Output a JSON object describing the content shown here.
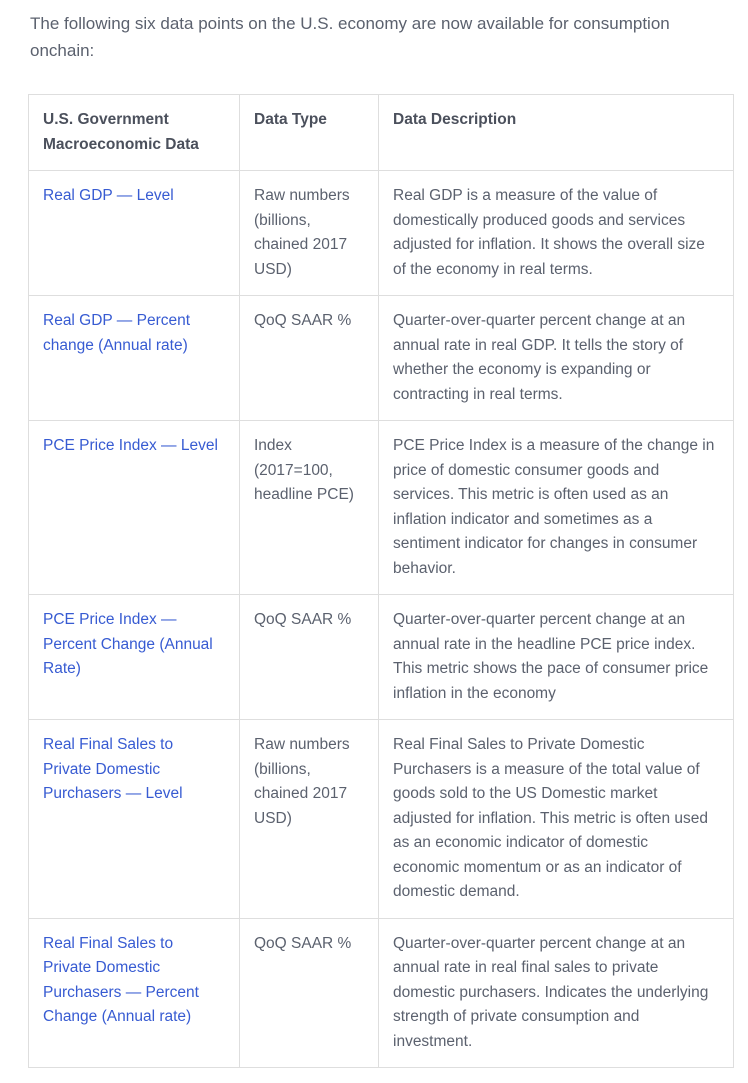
{
  "intro": "The following six data points on the U.S. economy are now available for consumption onchain:",
  "colors": {
    "link_blue": "#375bd2",
    "body_text": "#5b616e",
    "header_text": "#4b505c",
    "table_border": "#dedede"
  },
  "table": {
    "headers": [
      "U.S. Government Macroeconomic Data",
      "Data Type",
      "Data Description"
    ],
    "rows": [
      {
        "name": "Real GDP — Level",
        "type": "Raw numbers (billions, chained 2017 USD)",
        "description": "Real GDP is a measure of the value of domestically produced goods and services adjusted for inflation. It shows the overall size of the economy in real terms."
      },
      {
        "name": "Real GDP — Percent change (Annual rate)",
        "type": "QoQ SAAR %",
        "description": "Quarter-over-quarter percent change at an annual rate in real GDP. It tells the story of whether the economy is expanding or contracting in real terms."
      },
      {
        "name": "PCE Price Index — Level",
        "type": "Index (2017=100, headline PCE)",
        "description": "PCE Price Index is a measure of the change in price of domestic consumer goods and services. This metric is often used as an inflation indicator and sometimes as a sentiment indicator for changes in consumer behavior."
      },
      {
        "name": "PCE Price Index — Percent Change (Annual Rate)",
        "type": "QoQ SAAR %",
        "description": "Quarter-over-quarter percent change at an annual rate in the headline PCE price index. This metric shows the pace of consumer price inflation in the economy"
      },
      {
        "name": "Real Final Sales to Private Domestic Purchasers — Level",
        "type": "Raw numbers (billions, chained 2017 USD)",
        "description": "Real Final Sales to Private Domestic Purchasers is a measure of the total value of goods sold to the US Domestic market adjusted for inflation. This metric is often used as an economic indicator of domestic economic momentum or as an indicator of domestic demand."
      },
      {
        "name": "Real Final Sales to Private Domestic Purchasers — Percent Change (Annual rate)",
        "type": "QoQ SAAR %",
        "description": "Quarter-over-quarter percent change at an annual rate in real final sales to private domestic purchasers. Indicates the underlying strength of private consumption and investment."
      }
    ]
  }
}
